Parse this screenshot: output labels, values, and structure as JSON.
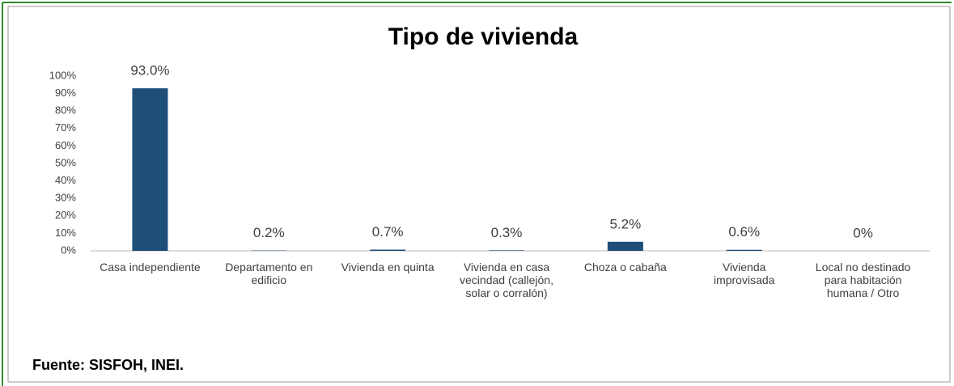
{
  "chart_data": {
    "type": "bar",
    "title": "Tipo de vivienda",
    "categories": [
      "Casa independiente",
      "Departamento en edificio",
      "Vivienda en quinta",
      "Vivienda en casa vecindad (callejón, solar o corralón)",
      "Choza o cabaña",
      "Vivienda improvisada",
      "Local no destinado para habitación humana / Otro"
    ],
    "values": [
      93.0,
      0.2,
      0.7,
      0.3,
      5.2,
      0.6,
      0
    ],
    "value_labels": [
      "93.0%",
      "0.2%",
      "0.7%",
      "0.3%",
      "5.2%",
      "0.6%",
      "0%"
    ],
    "color": "#1f4e79",
    "ylim": [
      0,
      100
    ],
    "yticks": [
      {
        "value": 0,
        "label": "0%"
      },
      {
        "value": 10,
        "label": "10%"
      },
      {
        "value": 20,
        "label": "20%"
      },
      {
        "value": 30,
        "label": "30%"
      },
      {
        "value": 40,
        "label": "40%"
      },
      {
        "value": 50,
        "label": "50%"
      },
      {
        "value": 60,
        "label": "60%"
      },
      {
        "value": 70,
        "label": "70%"
      },
      {
        "value": 80,
        "label": "80%"
      },
      {
        "value": 90,
        "label": "90%"
      },
      {
        "value": 100,
        "label": "100%"
      }
    ],
    "grid": false,
    "source": "Fuente: SISFOH, INEI."
  }
}
